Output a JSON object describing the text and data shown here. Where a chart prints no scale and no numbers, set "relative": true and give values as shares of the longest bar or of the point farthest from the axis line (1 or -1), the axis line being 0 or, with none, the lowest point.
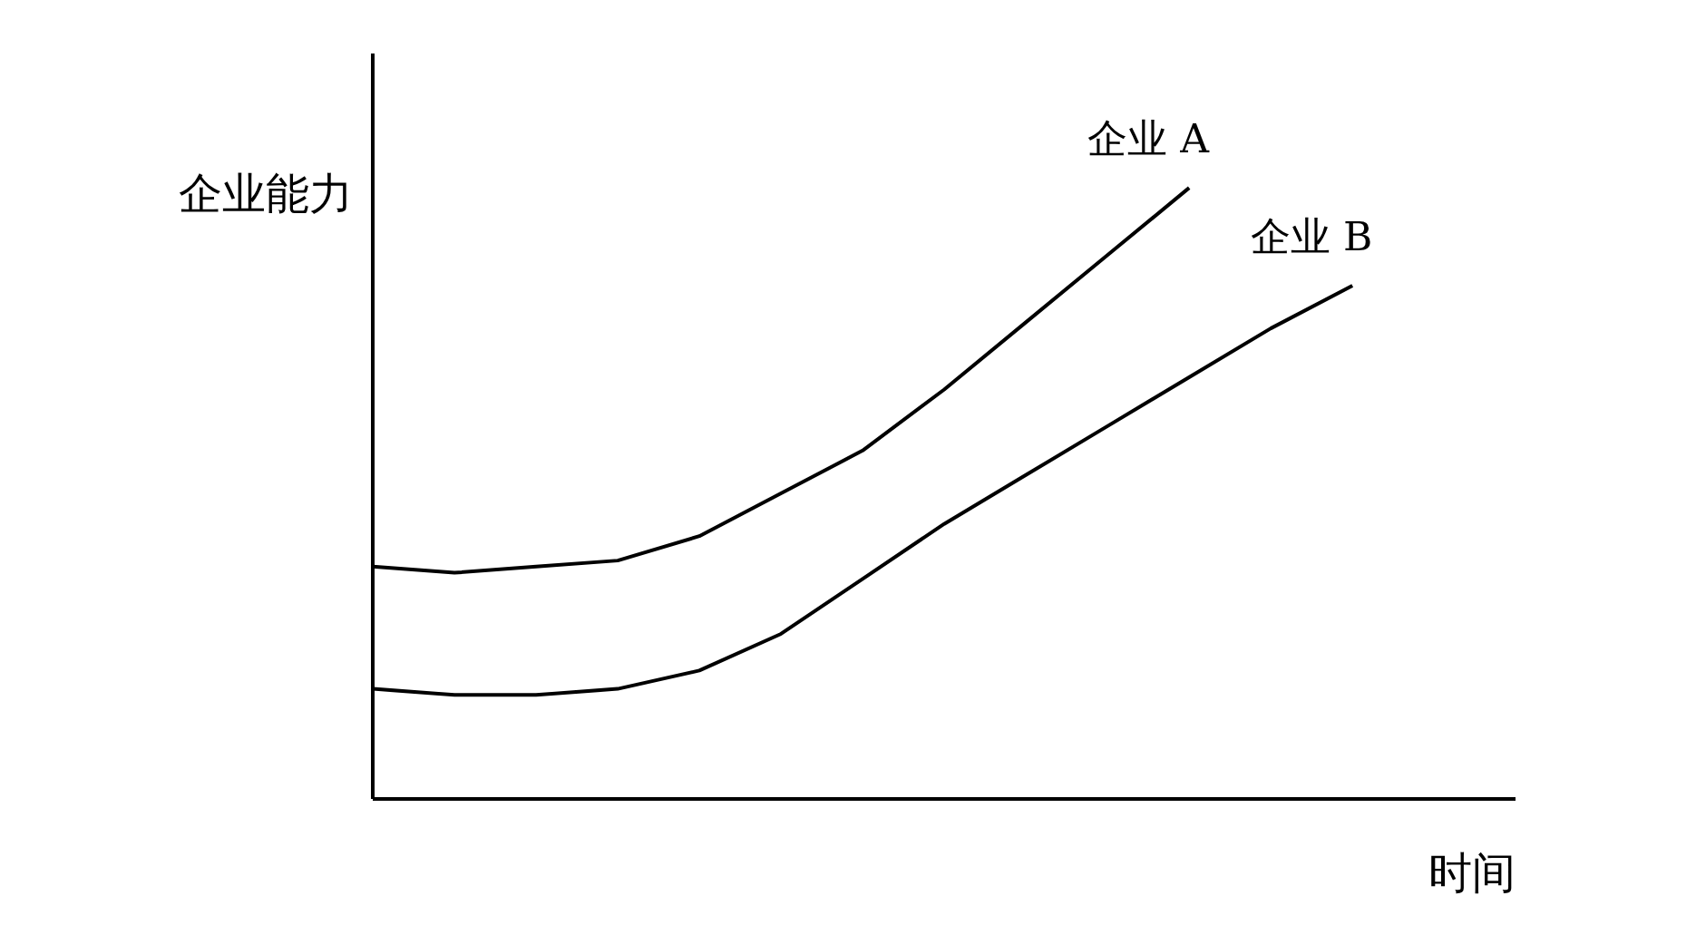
{
  "chart_data": {
    "type": "line",
    "relative": true,
    "xlabel": "时间",
    "ylabel": "企业能力",
    "categories": [
      null,
      null,
      null,
      null,
      null,
      null,
      null,
      null,
      null,
      null,
      null,
      null,
      null
    ],
    "series": [
      {
        "name": "企业 A",
        "color": "#000000",
        "values": [
          0.38,
          0.37,
          0.38,
          0.39,
          0.43,
          0.5,
          0.57,
          0.67,
          0.78,
          0.89,
          1.0,
          null,
          null
        ]
      },
      {
        "name": "企业 B",
        "color": "#000000",
        "values": [
          0.18,
          0.17,
          0.17,
          0.18,
          0.21,
          0.27,
          0.36,
          0.45,
          0.53,
          0.61,
          0.69,
          0.77,
          0.84
        ]
      }
    ]
  }
}
